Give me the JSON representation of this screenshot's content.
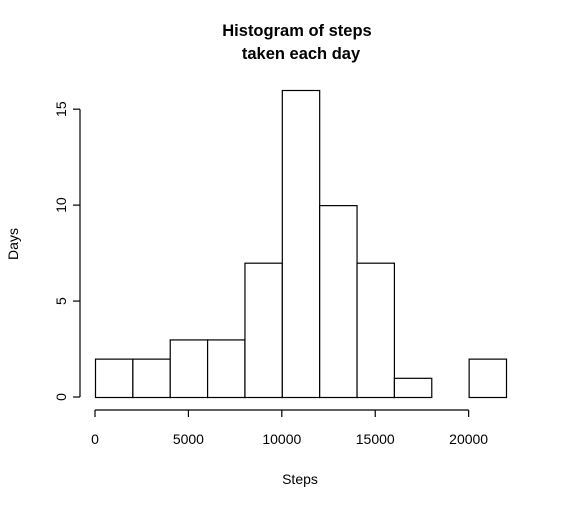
{
  "chart_data": {
    "type": "bar",
    "title_lines": [
      "Histogram of steps",
      "taken each day"
    ],
    "xlabel": "Steps",
    "ylabel": "Days",
    "bin_edges": [
      0,
      2000,
      4000,
      6000,
      8000,
      10000,
      12000,
      14000,
      16000,
      18000,
      20000,
      22000
    ],
    "values": [
      2,
      2,
      3,
      3,
      7,
      16,
      10,
      7,
      1,
      0,
      2
    ],
    "x_ticks": [
      0,
      5000,
      10000,
      15000,
      20000
    ],
    "y_ticks": [
      0,
      5,
      10,
      15
    ],
    "xlim": [
      0,
      22000
    ],
    "ylim": [
      0,
      16
    ],
    "bar_fill": "#ffffff",
    "bar_stroke": "#000000",
    "grid": false,
    "legend": "none"
  }
}
